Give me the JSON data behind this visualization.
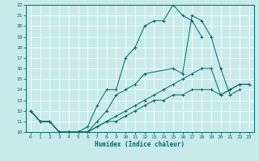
{
  "xlabel": "Humidex (Indice chaleur)",
  "background_color": "#c8eaea",
  "grid_color": "#b8d8d8",
  "line_color": "#006868",
  "xlim": [
    -0.5,
    23.5
  ],
  "ylim": [
    10,
    22
  ],
  "yticks": [
    10,
    11,
    12,
    13,
    14,
    15,
    16,
    17,
    18,
    19,
    20,
    21,
    22
  ],
  "xticks": [
    0,
    1,
    2,
    3,
    4,
    5,
    6,
    7,
    8,
    9,
    10,
    11,
    12,
    13,
    14,
    15,
    16,
    17,
    18,
    19,
    20,
    21,
    22,
    23
  ],
  "lines": [
    {
      "x": [
        0,
        1,
        2,
        3,
        4,
        5,
        6,
        7,
        8,
        9,
        10,
        11,
        12,
        13,
        14,
        15,
        16,
        17,
        18
      ],
      "y": [
        12,
        11,
        11,
        10,
        10,
        10,
        10.5,
        12.5,
        14,
        14,
        17,
        18,
        20,
        20.5,
        20.5,
        22,
        21,
        20.5,
        19
      ]
    },
    {
      "x": [
        0,
        1,
        2,
        3,
        4,
        5,
        6,
        7,
        8,
        9,
        10,
        11,
        12,
        15,
        16,
        17,
        18,
        19,
        20,
        21,
        22
      ],
      "y": [
        12,
        11,
        11,
        10,
        10,
        10,
        10,
        11,
        12,
        13.5,
        14,
        14.5,
        15.5,
        16,
        15.5,
        21,
        20.5,
        19,
        16,
        13.5,
        14
      ]
    },
    {
      "x": [
        0,
        1,
        2,
        3,
        4,
        5,
        6,
        7,
        8,
        9,
        10,
        11,
        12,
        13,
        14,
        15,
        16,
        17,
        18,
        19,
        20,
        21,
        22,
        23
      ],
      "y": [
        12,
        11,
        11,
        10,
        10,
        10,
        10,
        10.5,
        11,
        11.5,
        12,
        12.5,
        13,
        13.5,
        14,
        14.5,
        15,
        15.5,
        16,
        16,
        13.5,
        14,
        14.5,
        14.5
      ]
    },
    {
      "x": [
        0,
        1,
        2,
        3,
        4,
        5,
        6,
        7,
        8,
        9,
        10,
        11,
        12,
        13,
        14,
        15,
        16,
        17,
        18,
        19,
        20,
        21,
        22,
        23
      ],
      "y": [
        12,
        11,
        11,
        10,
        10,
        10,
        10,
        10.5,
        11,
        11,
        11.5,
        12,
        12.5,
        13,
        13,
        13.5,
        13.5,
        14,
        14,
        14,
        13.5,
        14,
        14.5,
        14.5
      ]
    }
  ]
}
